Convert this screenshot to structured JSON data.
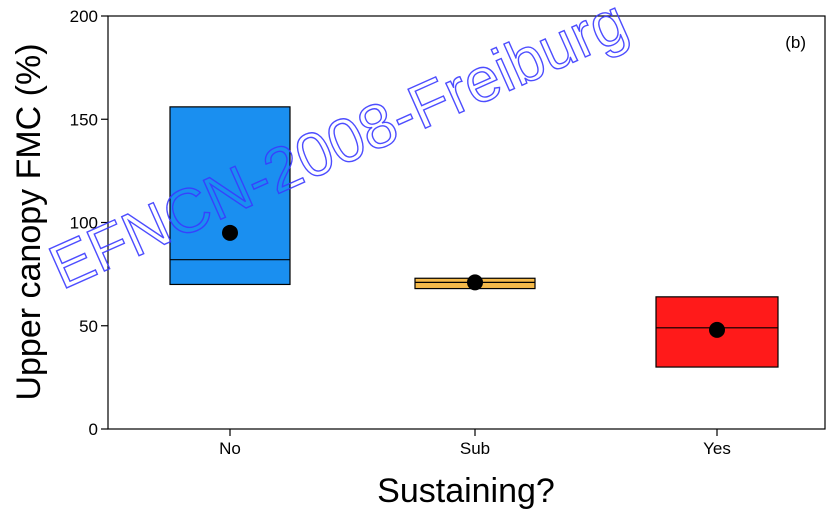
{
  "chart_data": {
    "type": "box",
    "panel_label": "(b)",
    "xlabel": "Sustaining?",
    "ylabel": "Upper canopy FMC (%)",
    "ylim": [
      0,
      200
    ],
    "yticks": [
      0,
      50,
      100,
      150,
      200
    ],
    "categories": [
      "No",
      "Sub",
      "Yes"
    ],
    "boxes": [
      {
        "category": "No",
        "q1": 70,
        "median": 82,
        "q3": 156,
        "mean": 95,
        "color": "#1a8ff0"
      },
      {
        "category": "Sub",
        "q1": 68,
        "median": 71,
        "q3": 73,
        "mean": 71,
        "color": "#f4b94a"
      },
      {
        "category": "Yes",
        "q1": 30,
        "median": 49,
        "q3": 64,
        "mean": 48,
        "color": "#ff1a1a"
      }
    ]
  },
  "watermark": "EFNCN-2008-Freiburg"
}
